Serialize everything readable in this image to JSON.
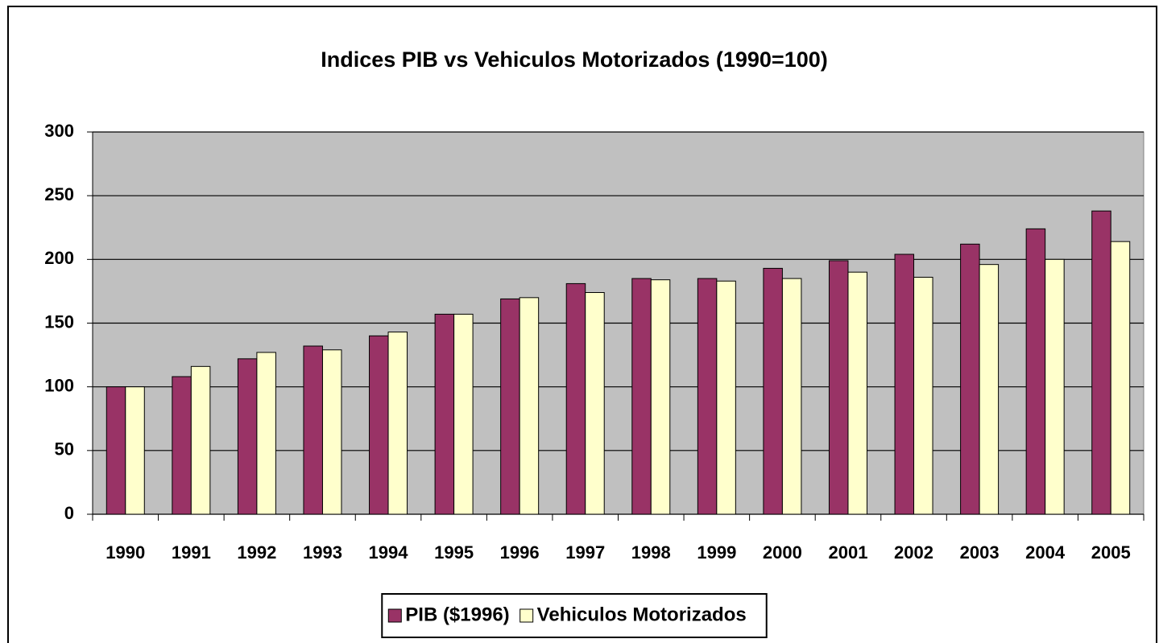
{
  "chart_data": {
    "type": "bar",
    "title": "Indices PIB vs Vehiculos Motorizados (1990=100)",
    "categories": [
      "1990",
      "1991",
      "1992",
      "1993",
      "1994",
      "1995",
      "1996",
      "1997",
      "1998",
      "1999",
      "2000",
      "2001",
      "2002",
      "2003",
      "2004",
      "2005"
    ],
    "series": [
      {
        "name": "PIB ($1996)",
        "color": "#993366",
        "values": [
          100,
          108,
          122,
          132,
          140,
          157,
          169,
          181,
          185,
          185,
          193,
          199,
          204,
          212,
          224,
          238
        ]
      },
      {
        "name": "Vehiculos Motorizados",
        "color": "#ffffcc",
        "values": [
          100,
          116,
          127,
          129,
          143,
          157,
          170,
          174,
          184,
          183,
          185,
          190,
          186,
          196,
          200,
          214
        ]
      }
    ],
    "ylim": [
      0,
      300
    ],
    "yticks": [
      0,
      50,
      100,
      150,
      200,
      250,
      300
    ],
    "grid": true,
    "legend": "bottom"
  }
}
